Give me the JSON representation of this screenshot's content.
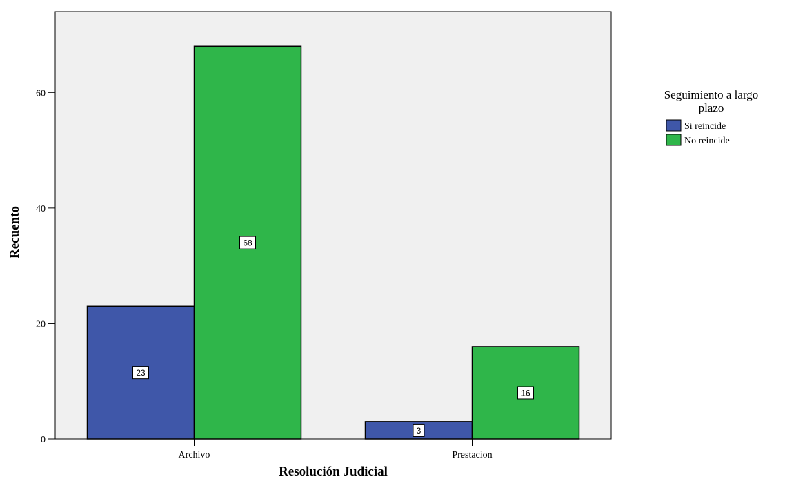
{
  "chart_data": {
    "type": "bar",
    "title": "",
    "xlabel": "Resolución Judicial",
    "ylabel": "Recuento",
    "categories": [
      "Archivo",
      "Prestacion"
    ],
    "series": [
      {
        "name": "Si reincide",
        "values": [
          23,
          3
        ],
        "color": "#3f57a9"
      },
      {
        "name": "No reincide",
        "values": [
          68,
          16
        ],
        "color": "#2fb64a"
      }
    ],
    "ylim": [
      0,
      74
    ],
    "yticks": [
      0,
      20,
      40,
      60
    ],
    "legend_title": [
      "Seguimiento a largo",
      "plazo"
    ],
    "legend_position": "right",
    "plot_background": "#f0f0f0",
    "grid": false
  }
}
